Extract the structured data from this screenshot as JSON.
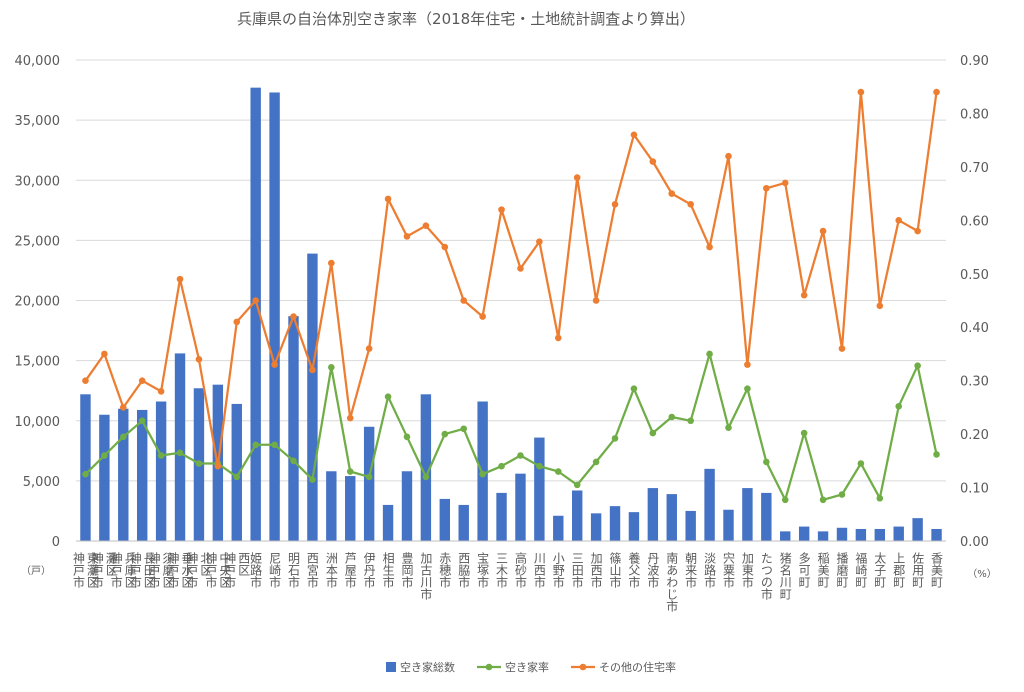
{
  "chart_data": {
    "type": "bar",
    "title": "兵庫県の自治体別空き家率（2018年住宅・土地統計調査より算出）",
    "y_left_unit": "（戸）",
    "y_right_unit": "（%）",
    "y_left_lim": [
      0,
      40000
    ],
    "y_right_lim": [
      0,
      0.9
    ],
    "y_left_ticks": [
      "0",
      "5,000",
      "10,000",
      "15,000",
      "20,000",
      "25,000",
      "30,000",
      "35,000",
      "40,000"
    ],
    "y_right_ticks": [
      "0.00",
      "0.10",
      "0.20",
      "0.30",
      "0.40",
      "0.50",
      "0.60",
      "0.70",
      "0.80",
      "0.90"
    ],
    "grid": true,
    "legend_position": "bottom",
    "categories": [
      [
        "神戸市",
        "東灘区"
      ],
      [
        "神戸市",
        "灘区"
      ],
      [
        "神戸市",
        "兵庫区"
      ],
      [
        "神戸市",
        "長田区"
      ],
      [
        "神戸市",
        "須磨区"
      ],
      [
        "神戸市",
        "垂水区"
      ],
      [
        "神戸市",
        "北区"
      ],
      [
        "神戸市",
        "中央区"
      ],
      [
        "神戸市",
        "西区"
      ],
      [
        "姫路市"
      ],
      [
        "尼崎市"
      ],
      [
        "明石市"
      ],
      [
        "西宮市"
      ],
      [
        "洲本市"
      ],
      [
        "芦屋市"
      ],
      [
        "伊丹市"
      ],
      [
        "相生市"
      ],
      [
        "豊岡市"
      ],
      [
        "加古川市"
      ],
      [
        "赤穂市"
      ],
      [
        "西脇市"
      ],
      [
        "宝塚市"
      ],
      [
        "三木市"
      ],
      [
        "高砂市"
      ],
      [
        "川西市"
      ],
      [
        "小野市"
      ],
      [
        "三田市"
      ],
      [
        "加西市"
      ],
      [
        "篠山市"
      ],
      [
        "養父市"
      ],
      [
        "丹波市"
      ],
      [
        "南あわじ市"
      ],
      [
        "朝来市"
      ],
      [
        "淡路市"
      ],
      [
        "宍粟市"
      ],
      [
        "加東市"
      ],
      [
        "たつの市"
      ],
      [
        "猪名川町"
      ],
      [
        "多可町"
      ],
      [
        "稲美町"
      ],
      [
        "播磨町"
      ],
      [
        "福崎町"
      ],
      [
        "太子町"
      ],
      [
        "上郡町"
      ],
      [
        "佐用町"
      ],
      [
        "香美町"
      ]
    ],
    "series": [
      {
        "name": "空き家総数",
        "type": "bar",
        "axis": "left",
        "color": "#4472C4",
        "values": [
          12200,
          10500,
          11000,
          10900,
          11600,
          15600,
          12700,
          13000,
          11400,
          37700,
          37300,
          18700,
          23900,
          5800,
          5400,
          9500,
          3000,
          5800,
          12200,
          3500,
          3000,
          11600,
          4000,
          5600,
          8600,
          2100,
          4200,
          2300,
          2900,
          2400,
          4400,
          3900,
          2500,
          6000,
          2600,
          4400,
          4000,
          800,
          1200,
          800,
          1100,
          1000,
          1000,
          1200,
          1900,
          1000
        ]
      },
      {
        "name": "空き家率",
        "type": "line",
        "axis": "right",
        "color": "#70AD47",
        "values": [
          0.125,
          0.16,
          0.195,
          0.225,
          0.16,
          0.165,
          0.145,
          0.145,
          0.12,
          0.18,
          0.18,
          0.15,
          0.115,
          0.325,
          0.13,
          0.12,
          0.27,
          0.195,
          0.12,
          0.2,
          0.21,
          0.125,
          0.14,
          0.16,
          0.14,
          0.13,
          0.105,
          0.148,
          0.192,
          0.285,
          0.202,
          0.232,
          0.225,
          0.35,
          0.212,
          0.285,
          0.148,
          0.077,
          0.202,
          0.077,
          0.087,
          0.145,
          0.08,
          0.252,
          0.328,
          0.162
        ]
      },
      {
        "name": "その他の住宅率",
        "type": "line",
        "axis": "right",
        "color": "#ED7D31",
        "values": [
          0.3,
          0.35,
          0.25,
          0.3,
          0.28,
          0.49,
          0.34,
          0.14,
          0.41,
          0.45,
          0.33,
          0.42,
          0.32,
          0.52,
          0.23,
          0.36,
          0.64,
          0.57,
          0.59,
          0.55,
          0.45,
          0.42,
          0.62,
          0.51,
          0.56,
          0.38,
          0.68,
          0.45,
          0.63,
          0.76,
          0.71,
          0.65,
          0.63,
          0.55,
          0.72,
          0.33,
          0.66,
          0.67,
          0.46,
          0.58,
          0.36,
          0.84,
          0.44,
          0.6,
          0.58,
          0.84
        ]
      }
    ]
  }
}
